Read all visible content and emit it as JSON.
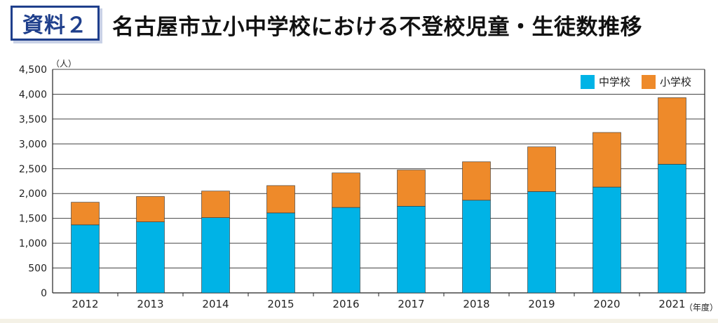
{
  "header": {
    "badge": "資料２",
    "title": "名古屋市立小中学校における不登校児童・生徒数推移"
  },
  "chart_data": {
    "type": "bar",
    "stacked": true,
    "y_unit_label": "（人）",
    "x_unit_label": "（年度）",
    "categories": [
      "2012",
      "2013",
      "2014",
      "2015",
      "2016",
      "2017",
      "2018",
      "2019",
      "2020",
      "2021"
    ],
    "series": [
      {
        "name": "中学校",
        "color": "#00b3e6",
        "values": [
          1370,
          1430,
          1515,
          1610,
          1720,
          1745,
          1865,
          2040,
          2130,
          2590
        ]
      },
      {
        "name": "小学校",
        "color": "#ee8a2a",
        "values": [
          455,
          510,
          535,
          550,
          695,
          730,
          775,
          900,
          1100,
          1340
        ]
      }
    ],
    "ylim": [
      0,
      4500
    ],
    "yticks": [
      0,
      500,
      1000,
      1500,
      2000,
      2500,
      3000,
      3500,
      4000,
      4500
    ],
    "ytick_labels": [
      "0",
      "500",
      "1,000",
      "1,500",
      "2,000",
      "2,500",
      "3,000",
      "3,500",
      "4,000",
      "4,500"
    ],
    "grid": true,
    "legend_position": "top-right"
  }
}
